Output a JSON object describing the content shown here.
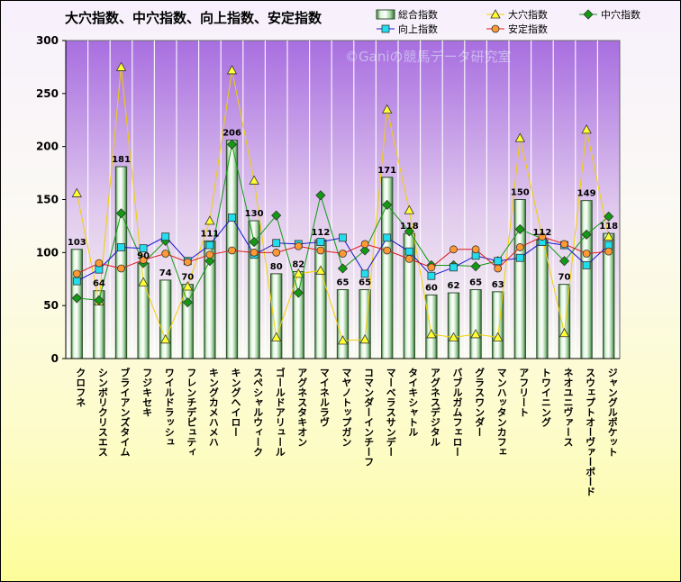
{
  "chart_data": {
    "type": "bar",
    "title": "大穴指数、中穴指数、向上指数、安定指数",
    "watermark": "©Ganiの競馬データ研究室",
    "ylim": [
      0,
      300
    ],
    "yticks": [
      0,
      50,
      100,
      150,
      200,
      250,
      300
    ],
    "categories": [
      "クロフネ",
      "シンボリクリスエス",
      "ブライアンズタイム",
      "フジキセキ",
      "ワイルドラッシュ",
      "フレンチデピュティ",
      "キングカメハメハ",
      "キングヘイロー",
      "スペシャルウィーク",
      "ゴールドアリュール",
      "アグネスタキオン",
      "マイネルラヴ",
      "マヤノトップガン",
      "コマンダーインチーフ",
      "マーベラスサンデー",
      "タイキシャトル",
      "アグネスデジタル",
      "バブルガムフェロー",
      "グラスワンダー",
      "マンハッタンカフェ",
      "アフリート",
      "トワイニング",
      "ネオユニヴァース",
      "スウェプトオーヴァーボード",
      "ジャングルポケット"
    ],
    "series": [
      {
        "name": "総合指数",
        "kind": "bar",
        "values": [
          103,
          64,
          181,
          90,
          74,
          70,
          111,
          206,
          130,
          80,
          82,
          112,
          65,
          65,
          171,
          118,
          60,
          62,
          65,
          63,
          150,
          112,
          70,
          149,
          118
        ]
      },
      {
        "name": "大穴指数",
        "kind": "line",
        "values": [
          156,
          54,
          275,
          72,
          18,
          68,
          130,
          272,
          168,
          20,
          80,
          83,
          17,
          18,
          235,
          140,
          23,
          20,
          23,
          20,
          208,
          115,
          24,
          216,
          115
        ]
      },
      {
        "name": "中穴指数",
        "kind": "line",
        "values": [
          57,
          55,
          137,
          90,
          111,
          53,
          92,
          202,
          110,
          135,
          62,
          154,
          85,
          102,
          145,
          120,
          88,
          88,
          87,
          92,
          122,
          113,
          92,
          117,
          134
        ]
      },
      {
        "name": "向上指数",
        "kind": "line",
        "values": [
          73,
          84,
          105,
          104,
          115,
          92,
          107,
          133,
          98,
          109,
          108,
          110,
          114,
          80,
          114,
          101,
          78,
          86,
          97,
          92,
          95,
          110,
          107,
          88,
          107
        ]
      },
      {
        "name": "安定指数",
        "kind": "line",
        "values": [
          80,
          90,
          85,
          93,
          99,
          91,
          98,
          102,
          100,
          100,
          106,
          102,
          99,
          108,
          102,
          94,
          86,
          103,
          103,
          85,
          105,
          115,
          108,
          99,
          101
        ]
      }
    ],
    "colors": {
      "bar_edge": "#2f4f2f",
      "bar_light": "#f2fff0",
      "bar_dark": "#5f9e5f",
      "oana_line": "#f0d000",
      "oana_fill": "#ffff33",
      "chuana": "#129a12",
      "kojo": "#1515cc",
      "kojo_fill": "#22ddee",
      "antei": "#dd1a1a",
      "antei_fill": "#ff9933",
      "plot_bg_top": "#a86ee0",
      "plot_bg_bottom": "#fafcf2"
    },
    "legend_position": "top-right"
  }
}
